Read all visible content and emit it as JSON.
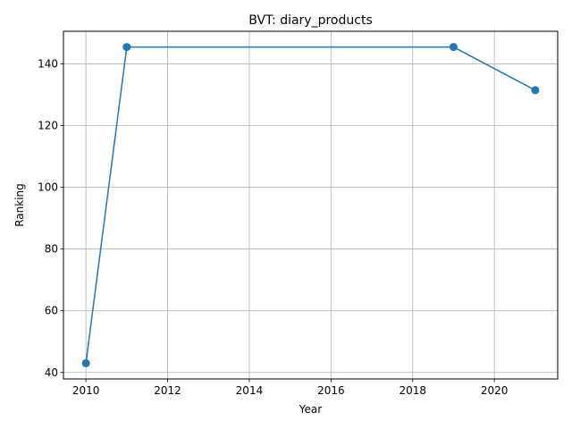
{
  "chart_data": {
    "type": "line",
    "title": "BVT: diary_products",
    "xlabel": "Year",
    "ylabel": "Ranking",
    "xlim": [
      2009.45,
      2021.55
    ],
    "ylim": [
      37.9,
      150.6
    ],
    "x_ticks": [
      2010,
      2012,
      2014,
      2016,
      2018,
      2020
    ],
    "y_ticks": [
      40,
      60,
      80,
      100,
      120,
      140
    ],
    "grid": true,
    "series": [
      {
        "name": "Ranking",
        "color": "#1f77b4",
        "marker": "circle",
        "x": [
          2010,
          2011,
          2019,
          2021
        ],
        "y": [
          43,
          145.5,
          145.5,
          131.5
        ]
      }
    ]
  }
}
